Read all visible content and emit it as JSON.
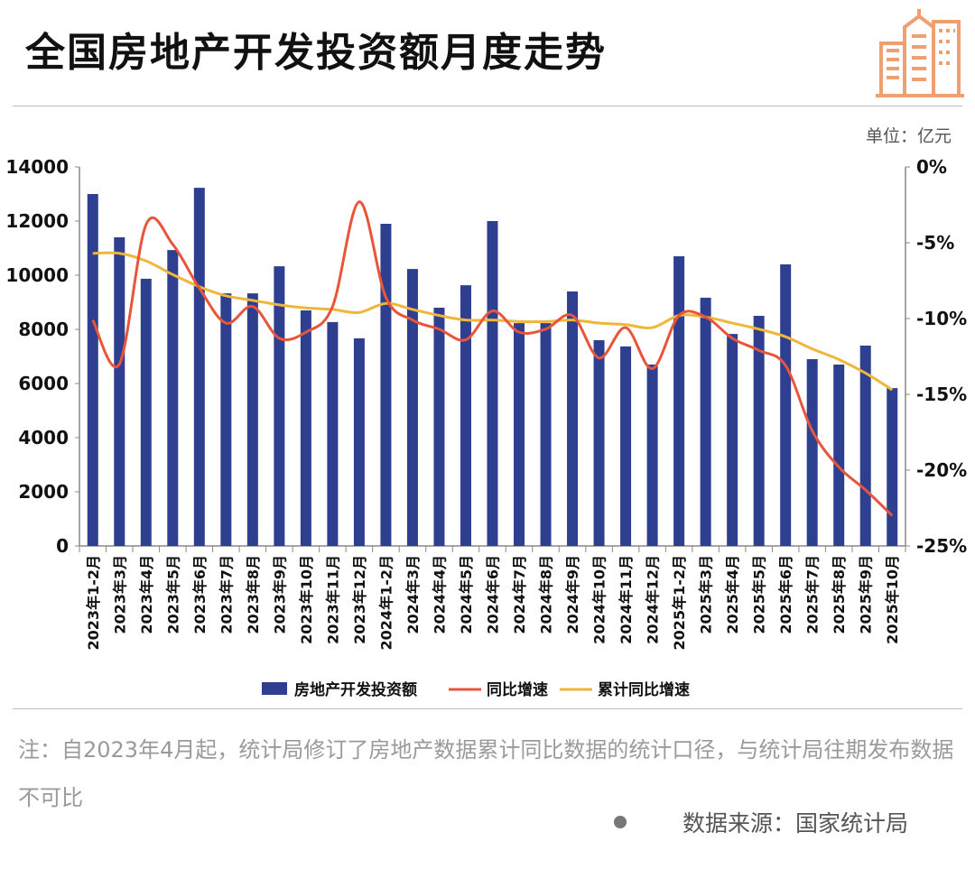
{
  "title": "全国房地产开发投资额月度走势",
  "unit": "单位：亿元",
  "note": "注：自2023年4月起，统计局修订了房地产数据累计同比数据的统计口径，与统计局往期发布数据不可比",
  "source": "数据来源：国家统计局",
  "logo_icon": "building-icon",
  "colors": {
    "bar": "#2f3f8f",
    "yoy": "#e8553a",
    "cumulative": "#f0b63a",
    "logo": "#f0a070"
  },
  "chart_data": {
    "type": "bar",
    "categories": [
      "2023年1-2月",
      "2023年3月",
      "2023年4月",
      "2023年5月",
      "2023年6月",
      "2023年7月",
      "2023年8月",
      "2023年9月",
      "2023年10月",
      "2023年11月",
      "2023年12月",
      "2024年1-2月",
      "2024年3月",
      "2024年4月",
      "2024年5月",
      "2024年6月",
      "2024年7月",
      "2024年8月",
      "2024年9月",
      "2024年10月",
      "2024年11月",
      "2024年12月",
      "2025年1-2月",
      "2025年3月",
      "2025年4月",
      "2025年5月",
      "2025年6月",
      "2025年7月",
      "2025年8月",
      "2025年9月",
      "2025年10月"
    ],
    "series": [
      {
        "name": "房地产开发投资额",
        "type": "bar",
        "axis": "left",
        "values": [
          13000,
          11400,
          9870,
          10930,
          13230,
          9330,
          9330,
          10330,
          8700,
          8270,
          7670,
          11900,
          10230,
          8800,
          9630,
          12000,
          8230,
          8230,
          9400,
          7600,
          7370,
          6700,
          10700,
          9170,
          7830,
          8500,
          10400,
          6900,
          6700,
          7400,
          5830
        ]
      },
      {
        "name": "同比增速",
        "type": "line",
        "axis": "right",
        "values": [
          -10.1,
          -13.0,
          -3.8,
          -5.1,
          -8.0,
          -10.3,
          -9.2,
          -11.3,
          -10.9,
          -9.2,
          -2.3,
          -8.6,
          -10.1,
          -10.7,
          -11.4,
          -9.5,
          -10.9,
          -10.7,
          -9.8,
          -12.6,
          -10.6,
          -13.3,
          -9.8,
          -9.9,
          -11.3,
          -12.1,
          -13.1,
          -17.4,
          -19.8,
          -21.3,
          -23.0
        ]
      },
      {
        "name": "累计同比增速",
        "type": "line",
        "axis": "right",
        "values": [
          -5.7,
          -5.7,
          -6.2,
          -7.1,
          -7.9,
          -8.5,
          -8.8,
          -9.1,
          -9.3,
          -9.4,
          -9.6,
          -9.0,
          -9.4,
          -9.8,
          -10.1,
          -10.1,
          -10.2,
          -10.2,
          -10.1,
          -10.3,
          -10.4,
          -10.6,
          -9.8,
          -9.9,
          -10.3,
          -10.7,
          -11.2,
          -12.0,
          -12.7,
          -13.6,
          -14.7
        ]
      }
    ],
    "left_axis": {
      "ylim": [
        0,
        14000
      ],
      "ticks": [
        "0",
        "2000",
        "4000",
        "6000",
        "8000",
        "10000",
        "12000",
        "14000"
      ]
    },
    "right_axis": {
      "ylim": [
        -25,
        0
      ],
      "ticks": [
        "-25%",
        "-20%",
        "-15%",
        "-10%",
        "-5%",
        "0%"
      ]
    },
    "grid": false,
    "legend_position": "bottom"
  }
}
